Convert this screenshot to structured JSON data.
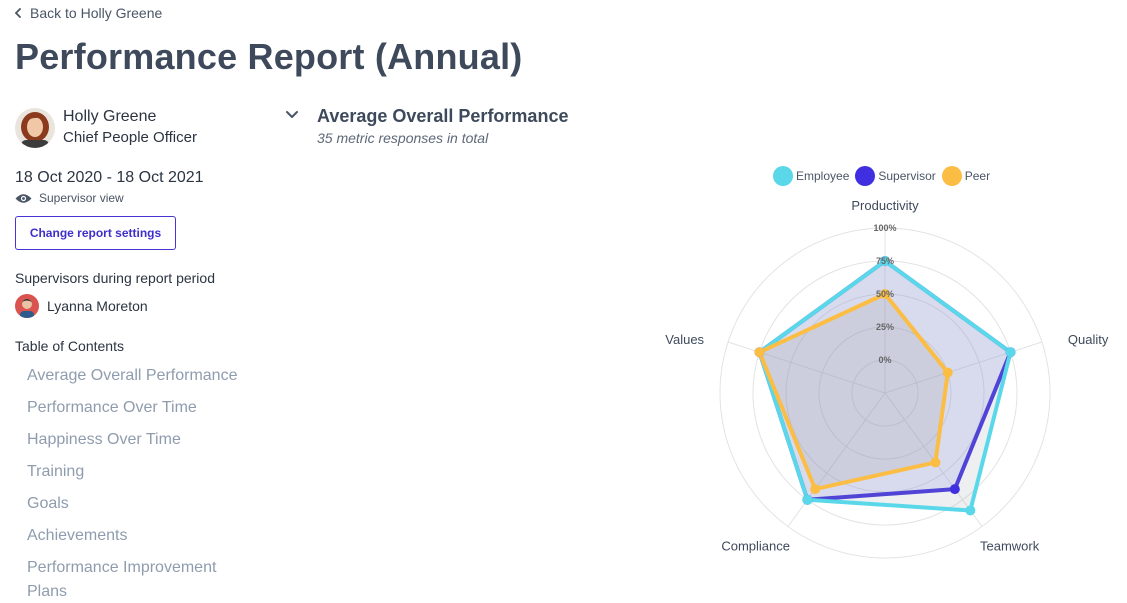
{
  "nav": {
    "back_label": "Back to Holly Greene"
  },
  "page": {
    "title": "Performance Report (Annual)"
  },
  "profile": {
    "name": "Holly Greene",
    "role": "Chief People Officer"
  },
  "report": {
    "date_range": "18 Oct 2020 - 18 Oct 2021",
    "view_mode": "Supervisor view",
    "settings_button": "Change report settings"
  },
  "supervisors": {
    "label": "Supervisors during report period",
    "items": [
      {
        "name": "Lyanna Moreton"
      }
    ]
  },
  "toc": {
    "label": "Table of Contents",
    "items": [
      "Average Overall Performance",
      "Performance Over Time",
      "Happiness Over Time",
      "Training",
      "Goals",
      "Achievements",
      "Performance Improvement Plans"
    ]
  },
  "section": {
    "title": "Average Overall Performance",
    "subtitle": "35 metric responses in total"
  },
  "chart_data": {
    "type": "radar",
    "axes": [
      "Productivity",
      "Quality",
      "Teamwork",
      "Compliance",
      "Values"
    ],
    "ticks": [
      0,
      25,
      50,
      75,
      100
    ],
    "tick_labels": [
      "0%",
      "25%",
      "50%",
      "75%",
      "100%"
    ],
    "range": [
      -25,
      100
    ],
    "legend_position": "top",
    "series": [
      {
        "name": "Employee",
        "color": "#5ad8ea",
        "values": [
          75,
          75,
          85,
          75,
          75
        ]
      },
      {
        "name": "Supervisor",
        "color": "#3f2fe0",
        "values": [
          75,
          75,
          65,
          75,
          75
        ]
      },
      {
        "name": "Peer",
        "color": "#fcbd45",
        "values": [
          50,
          25,
          40,
          65,
          75
        ]
      }
    ]
  }
}
